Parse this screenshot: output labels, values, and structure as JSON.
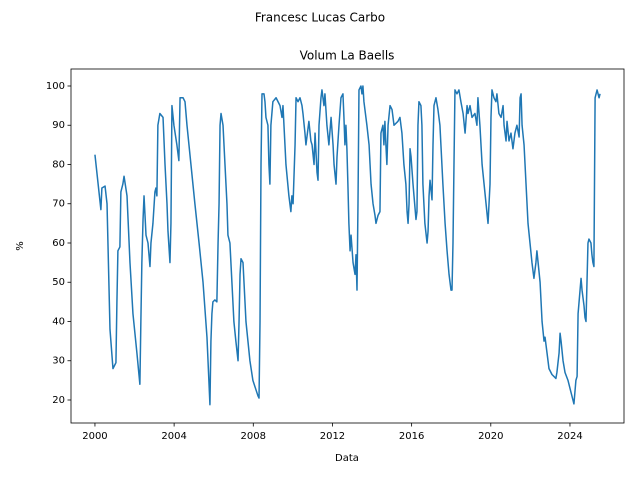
{
  "chart_data": {
    "type": "line",
    "suptitle": "Francesc Lucas Carbo",
    "title": "Volum La Baells",
    "xlabel": "Data",
    "ylabel": "%",
    "x": [
      2000.0,
      2000.3,
      2000.35,
      2000.51,
      2000.61,
      2000.76,
      2000.91,
      2001.06,
      2001.11,
      2001.16,
      2001.26,
      2001.31,
      2001.41,
      2001.47,
      2001.62,
      2001.77,
      2001.92,
      2002.12,
      2002.27,
      2002.32,
      2002.37,
      2002.43,
      2002.48,
      2002.58,
      2002.68,
      2002.78,
      2002.83,
      2002.93,
      2003.03,
      2003.08,
      2003.13,
      2003.18,
      2003.28,
      2003.44,
      2003.54,
      2003.64,
      2003.69,
      2003.79,
      2003.84,
      2003.89,
      2003.99,
      2004.14,
      2004.24,
      2004.3,
      2004.45,
      2004.55,
      2004.65,
      2004.85,
      2005.05,
      2005.26,
      2005.46,
      2005.66,
      2005.81,
      2005.86,
      2005.91,
      2005.96,
      2006.06,
      2006.16,
      2006.22,
      2006.27,
      2006.32,
      2006.37,
      2006.47,
      2006.57,
      2006.67,
      2006.72,
      2006.82,
      2006.92,
      2007.02,
      2007.12,
      2007.23,
      2007.28,
      2007.33,
      2007.38,
      2007.48,
      2007.58,
      2007.63,
      2007.73,
      2007.83,
      2007.98,
      2008.24,
      2008.29,
      2008.34,
      2008.39,
      2008.44,
      2008.54,
      2008.59,
      2008.64,
      2008.74,
      2008.79,
      2008.84,
      2008.89,
      2008.99,
      2009.15,
      2009.35,
      2009.45,
      2009.5,
      2009.6,
      2009.65,
      2009.8,
      2009.9,
      2009.95,
      2010.01,
      2010.11,
      2010.16,
      2010.26,
      2010.36,
      2010.46,
      2010.51,
      2010.61,
      2010.66,
      2010.81,
      2010.91,
      2010.97,
      2011.07,
      2011.12,
      2011.22,
      2011.27,
      2011.32,
      2011.42,
      2011.47,
      2011.57,
      2011.62,
      2011.72,
      2011.82,
      2011.93,
      2012.03,
      2012.08,
      2012.18,
      2012.23,
      2012.33,
      2012.43,
      2012.53,
      2012.58,
      2012.63,
      2012.68,
      2012.73,
      2012.78,
      2012.83,
      2012.89,
      2012.94,
      2013.04,
      2013.14,
      2013.19,
      2013.24,
      2013.29,
      2013.34,
      2013.44,
      2013.49,
      2013.54,
      2013.59,
      2013.74,
      2013.85,
      2013.9,
      2013.95,
      2014.05,
      2014.15,
      2014.2,
      2014.3,
      2014.4,
      2014.45,
      2014.55,
      2014.6,
      2014.65,
      2014.7,
      2014.75,
      2014.81,
      2014.91,
      2015.01,
      2015.11,
      2015.31,
      2015.41,
      2015.51,
      2015.61,
      2015.71,
      2015.77,
      2015.82,
      2015.87,
      2015.92,
      2015.97,
      2016.07,
      2016.12,
      2016.22,
      2016.27,
      2016.32,
      2016.37,
      2016.47,
      2016.52,
      2016.57,
      2016.67,
      2016.78,
      2016.83,
      2016.88,
      2016.93,
      2017.03,
      2017.08,
      2017.13,
      2017.23,
      2017.33,
      2017.43,
      2017.48,
      2017.58,
      2017.69,
      2017.79,
      2017.89,
      2017.99,
      2018.04,
      2018.09,
      2018.14,
      2018.19,
      2018.29,
      2018.39,
      2018.49,
      2018.6,
      2018.7,
      2018.8,
      2018.85,
      2018.95,
      2019.05,
      2019.2,
      2019.3,
      2019.35,
      2019.45,
      2019.56,
      2019.66,
      2019.76,
      2019.86,
      2019.91,
      2019.96,
      2020.01,
      2020.06,
      2020.16,
      2020.26,
      2020.31,
      2020.41,
      2020.52,
      2020.62,
      2020.67,
      2020.77,
      2020.82,
      2020.92,
      2021.02,
      2021.12,
      2021.22,
      2021.32,
      2021.43,
      2021.48,
      2021.53,
      2021.58,
      2021.68,
      2021.78,
      2021.88,
      2021.98,
      2022.08,
      2022.18,
      2022.28,
      2022.33,
      2022.39,
      2022.49,
      2022.59,
      2022.69,
      2022.74,
      2022.84,
      2022.94,
      2023.09,
      2023.29,
      2023.34,
      2023.45,
      2023.5,
      2023.55,
      2023.65,
      2023.75,
      2023.9,
      2024.05,
      2024.15,
      2024.2,
      2024.3,
      2024.36,
      2024.41,
      2024.51,
      2024.56,
      2024.61,
      2024.71,
      2024.76,
      2024.81,
      2024.91,
      2024.96,
      2025.06,
      2025.11,
      2025.16,
      2025.21,
      2025.27,
      2025.32,
      2025.37,
      2025.47,
      2025.52
    ],
    "series": [
      {
        "color": "#1f77b4",
        "values": [
          82.5,
          68.5,
          74,
          74.5,
          70,
          38,
          28,
          29.5,
          45,
          58,
          59,
          73,
          75,
          77,
          72,
          55,
          42,
          32,
          24,
          40,
          55,
          66,
          72,
          62,
          60,
          54,
          60,
          65,
          73,
          74,
          72,
          90,
          93,
          92,
          80,
          70,
          63,
          55,
          65,
          95,
          90,
          85,
          81,
          97,
          97,
          96,
          90,
          80,
          70,
          60,
          50,
          36,
          18.8,
          35,
          42,
          45,
          45.5,
          45,
          60,
          70,
          90,
          93,
          90,
          80,
          70,
          62,
          60,
          50,
          40,
          35,
          30,
          40,
          52,
          56,
          55,
          45,
          40,
          35,
          30,
          25,
          21,
          20.5,
          40,
          80,
          98,
          98,
          96,
          92,
          90,
          80,
          75,
          90,
          96,
          97,
          95,
          92,
          95,
          85,
          80,
          72,
          68,
          72,
          70,
          85,
          97,
          96,
          97,
          95,
          93,
          88,
          85,
          91,
          86,
          85,
          80,
          88,
          78,
          76,
          90,
          97,
          99,
          95,
          98,
          90,
          85,
          92,
          85,
          80,
          75,
          82,
          90,
          97,
          98,
          92,
          85,
          90,
          84,
          75,
          65,
          58,
          62,
          55,
          52,
          57,
          48,
          70,
          99,
          100,
          98,
          100,
          96,
          90,
          85,
          80,
          75,
          70,
          67,
          65,
          67,
          68,
          88,
          90,
          85,
          91,
          85,
          80,
          90,
          95,
          94,
          90,
          91,
          92,
          88,
          80,
          75,
          68,
          65,
          70,
          84,
          82,
          75,
          72,
          66,
          68,
          90,
          96,
          95,
          90,
          75,
          65,
          60,
          63,
          72,
          76,
          71,
          85,
          95,
          97,
          94,
          90,
          85,
          75,
          65,
          58,
          52,
          48,
          48,
          60,
          80,
          99,
          98,
          99,
          96,
          93,
          88,
          95,
          93,
          95,
          92,
          93,
          90,
          97,
          90,
          80,
          75,
          70,
          65,
          70,
          75,
          92,
          99,
          97,
          96,
          98,
          93,
          92,
          95,
          90,
          86,
          91,
          86,
          88,
          84,
          88,
          90,
          87,
          97,
          98,
          90,
          85,
          75,
          65,
          60,
          55,
          51,
          55,
          58,
          55,
          50,
          40,
          35,
          36,
          32,
          28,
          26.5,
          25.5,
          27,
          32,
          37,
          35,
          30,
          27,
          25,
          22,
          20,
          19,
          25,
          26,
          42,
          48,
          51,
          48,
          44,
          41,
          40,
          60,
          61,
          60,
          57,
          55,
          54,
          97,
          98,
          99,
          97,
          98
        ]
      }
    ],
    "xlim": [
      1998.79,
      2026.73
    ],
    "xticks": [
      2000,
      2004,
      2008,
      2012,
      2016,
      2020,
      2024
    ],
    "ylim": [
      14.14,
      104.33
    ],
    "yticks": [
      20,
      30,
      40,
      50,
      60,
      70,
      80,
      90,
      100
    ],
    "grid": false
  }
}
